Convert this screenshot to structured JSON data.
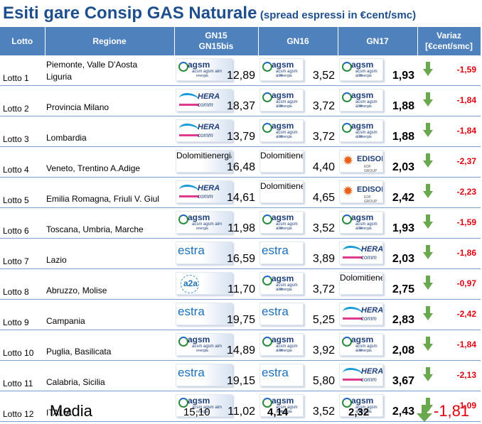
{
  "title": {
    "main": "Esiti gare Consip GAS Naturale",
    "sub": "(spread espressi in €cent/smc)"
  },
  "headers": {
    "lotto": "Lotto",
    "regione": "Regione",
    "gn15_line1": "GN15",
    "gn15_line2": "GN15bis",
    "gn16": "GN16",
    "gn17": "GN17",
    "var_line1": "Variaz",
    "var_line2": "[€cent/smc]"
  },
  "brands": {
    "agsm": {
      "name": "agsm",
      "sub1": "acsm agsm aim",
      "sub2": "energia"
    },
    "hera": {
      "name": "HERA",
      "sub": "comm"
    },
    "dolomiti": {
      "name": "Dolomiti",
      "sub": "energia"
    },
    "edison": {
      "name": "EDISON",
      "sub": "EDF GROUP"
    },
    "estra": {
      "name": "estra"
    },
    "a2a": {
      "name": "a2a"
    }
  },
  "rows": [
    {
      "lotto": "Lotto 1",
      "regione_line1": "Piemonte, Valle D'Aosta",
      "regione_line2": "Liguria",
      "gn15": {
        "brand": "agsm",
        "value": "12,89"
      },
      "gn16": {
        "brand": "agsm",
        "value": "3,52"
      },
      "gn17": {
        "brand": "agsm",
        "value": "1,93"
      },
      "variaz": "-1,59"
    },
    {
      "lotto": "Lotto 2",
      "regione_line1": "Provincia Milano",
      "regione_line2": "",
      "gn15": {
        "brand": "hera",
        "value": "18,37"
      },
      "gn16": {
        "brand": "agsm",
        "value": "3,72"
      },
      "gn17": {
        "brand": "agsm",
        "value": "1,88"
      },
      "variaz": "-1,84"
    },
    {
      "lotto": "Lotto 3",
      "regione_line1": "Lombardia",
      "regione_line2": "",
      "gn15": {
        "brand": "hera",
        "value": "13,79"
      },
      "gn16": {
        "brand": "agsm",
        "value": "3,72"
      },
      "gn17": {
        "brand": "agsm",
        "value": "1,88"
      },
      "variaz": "-1,84"
    },
    {
      "lotto": "Lotto 4",
      "regione_line1": "Veneto, Trentino A.Adige",
      "regione_line2": "",
      "gn15": {
        "brand": "dolomiti",
        "value": "16,48"
      },
      "gn16": {
        "brand": "dolomiti",
        "value": "4,40"
      },
      "gn17": {
        "brand": "edison",
        "value": "2,03"
      },
      "variaz": "-2,37"
    },
    {
      "lotto": "Lotto 5",
      "regione_line1": "Emilia Romagna, Friuli V. Giul",
      "regione_line2": "",
      "gn15": {
        "brand": "hera",
        "value": "14,61"
      },
      "gn16": {
        "brand": "dolomiti",
        "value": "4,65"
      },
      "gn17": {
        "brand": "edison",
        "value": "2,42"
      },
      "variaz": "-2,23"
    },
    {
      "lotto": "Lotto 6",
      "regione_line1": "Toscana, Umbria, Marche",
      "regione_line2": "",
      "gn15": {
        "brand": "agsm",
        "value": "11,98"
      },
      "gn16": {
        "brand": "agsm",
        "value": "3,52"
      },
      "gn17": {
        "brand": "agsm",
        "value": "1,93"
      },
      "variaz": "-1,59"
    },
    {
      "lotto": "Lotto 7",
      "regione_line1": "Lazio",
      "regione_line2": "",
      "gn15": {
        "brand": "estra",
        "value": "16,59"
      },
      "gn16": {
        "brand": "estra",
        "value": "3,89"
      },
      "gn17": {
        "brand": "hera",
        "value": "2,03"
      },
      "variaz": "-1,86"
    },
    {
      "lotto": "Lotto 8",
      "regione_line1": "Abruzzo, Molise",
      "regione_line2": "",
      "gn15": {
        "brand": "a2a",
        "value": "11,70"
      },
      "gn16": {
        "brand": "agsm",
        "value": "3,72"
      },
      "gn17": {
        "brand": "dolomiti",
        "value": "2,75"
      },
      "variaz": "-0,97"
    },
    {
      "lotto": "Lotto 9",
      "regione_line1": "Campania",
      "regione_line2": "",
      "gn15": {
        "brand": "estra",
        "value": "19,75"
      },
      "gn16": {
        "brand": "estra",
        "value": "5,25"
      },
      "gn17": {
        "brand": "hera",
        "value": "2,83"
      },
      "variaz": "-2,42"
    },
    {
      "lotto": "Lotto 10",
      "regione_line1": "Puglia, Basilicata",
      "regione_line2": "",
      "gn15": {
        "brand": "agsm",
        "value": "14,89"
      },
      "gn16": {
        "brand": "agsm",
        "value": "3,92"
      },
      "gn17": {
        "brand": "agsm",
        "value": "2,08"
      },
      "variaz": "-1,84"
    },
    {
      "lotto": "Lotto 11",
      "regione_line1": "Calabria, Sicilia",
      "regione_line2": "",
      "gn15": {
        "brand": "estra",
        "value": "19,15"
      },
      "gn16": {
        "brand": "estra",
        "value": "5,80"
      },
      "gn17": {
        "brand": "hera",
        "value": "3,67"
      },
      "variaz": "-2,13"
    },
    {
      "lotto": "Lotto 12",
      "regione_line1": "ITALIA",
      "regione_line2": "",
      "gn15": {
        "brand": "agsm",
        "value": "11,02"
      },
      "gn16": {
        "brand": "agsm",
        "value": "3,52"
      },
      "gn17": {
        "brand": "agsm",
        "value": "2,43"
      },
      "variaz": "-1,09"
    }
  ],
  "footer": {
    "label": "Media",
    "gn15": "15,10",
    "gn16": "4,14",
    "gn17": "2,32",
    "variaz": "-1,81"
  },
  "colors": {
    "header": "#4f81bd",
    "title": "#1e4f8c",
    "negative": "#e0000f",
    "arrow": "#6aa84f"
  },
  "icons": {
    "variaz": "arrow-down-icon"
  }
}
